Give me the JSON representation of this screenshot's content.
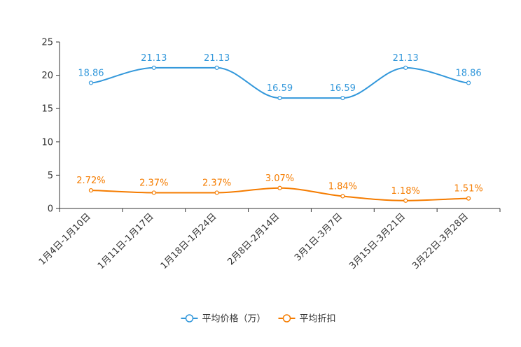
{
  "chart_data": {
    "type": "line",
    "title": "",
    "xlabel": "",
    "ylabel": "",
    "ylim": [
      0,
      25
    ],
    "yticks": [
      0,
      5,
      10,
      15,
      20,
      25
    ],
    "ytick_labels": [
      "0",
      "5",
      "10",
      "15",
      "20",
      "25"
    ],
    "grid": false,
    "legend_position": "bottom-center",
    "categories": [
      "1月4日-1月10日",
      "1月11日-1月17日",
      "1月18日-1月24日",
      "2月8日-2月14日",
      "3月1日-3月7日",
      "3月15日-3月21日",
      "3月22日-3月28日"
    ],
    "series": [
      {
        "name": "平均价格（万）",
        "color": "#3398DB",
        "values": [
          18.86,
          21.13,
          21.13,
          16.59,
          16.59,
          21.13,
          18.86
        ],
        "labels": [
          "18.86",
          "21.13",
          "21.13",
          "16.59",
          "16.59",
          "21.13",
          "18.86"
        ]
      },
      {
        "name": "平均折扣",
        "color": "#F57C00",
        "values": [
          2.72,
          2.37,
          2.37,
          3.07,
          1.84,
          1.18,
          1.51
        ],
        "labels": [
          "2.72%",
          "2.37%",
          "2.37%",
          "3.07%",
          "1.84%",
          "1.18%",
          "1.51%"
        ]
      }
    ]
  }
}
